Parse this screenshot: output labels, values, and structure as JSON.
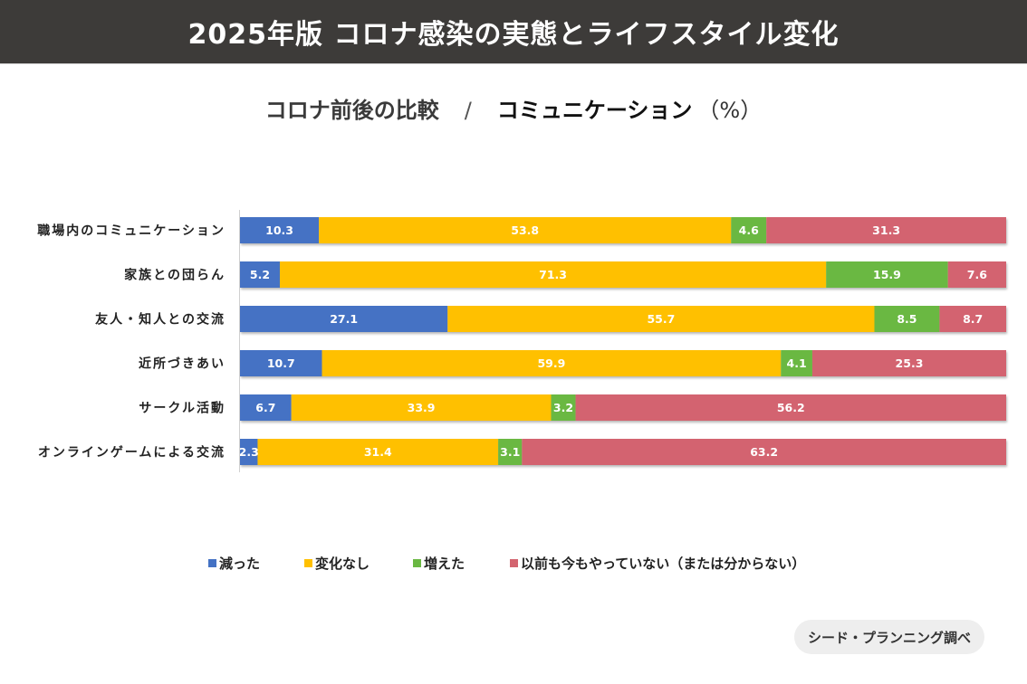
{
  "header": {
    "title": "2025年版 コロナ感染の実態とライフスタイル変化"
  },
  "subtitle": {
    "part1": "コロナ前後の比較",
    "separator": "/",
    "part2": "コミュニケーション",
    "unit": "（%）"
  },
  "source": {
    "label": "シード・プランニング調べ"
  },
  "chart_data": {
    "type": "bar",
    "orientation": "horizontal",
    "stacked": true,
    "title": "コロナ前後の比較 / コミュニケーション（%）",
    "xlabel": "",
    "ylabel": "",
    "xlim": [
      0,
      100
    ],
    "grid": false,
    "legend_position": "bottom",
    "categories": [
      "職場内のコミュニケーション",
      "家族との団らん",
      "友人・知人との交流",
      "近所づきあい",
      "サークル活動",
      "オンラインゲームによる交流"
    ],
    "series": [
      {
        "name": "減った",
        "color": "#4472c4",
        "values": [
          10.3,
          5.2,
          27.1,
          10.7,
          6.7,
          2.3
        ]
      },
      {
        "name": "変化なし",
        "color": "#ffc000",
        "values": [
          53.8,
          71.3,
          55.7,
          59.9,
          33.9,
          31.4
        ]
      },
      {
        "name": "増えた",
        "color": "#6ab843",
        "values": [
          4.6,
          15.9,
          8.5,
          4.1,
          3.2,
          3.1
        ]
      },
      {
        "name": "以前も今もやっていない（または分からない）",
        "color": "#d3646f",
        "values": [
          31.3,
          7.6,
          8.7,
          25.3,
          56.2,
          63.2
        ]
      }
    ]
  }
}
